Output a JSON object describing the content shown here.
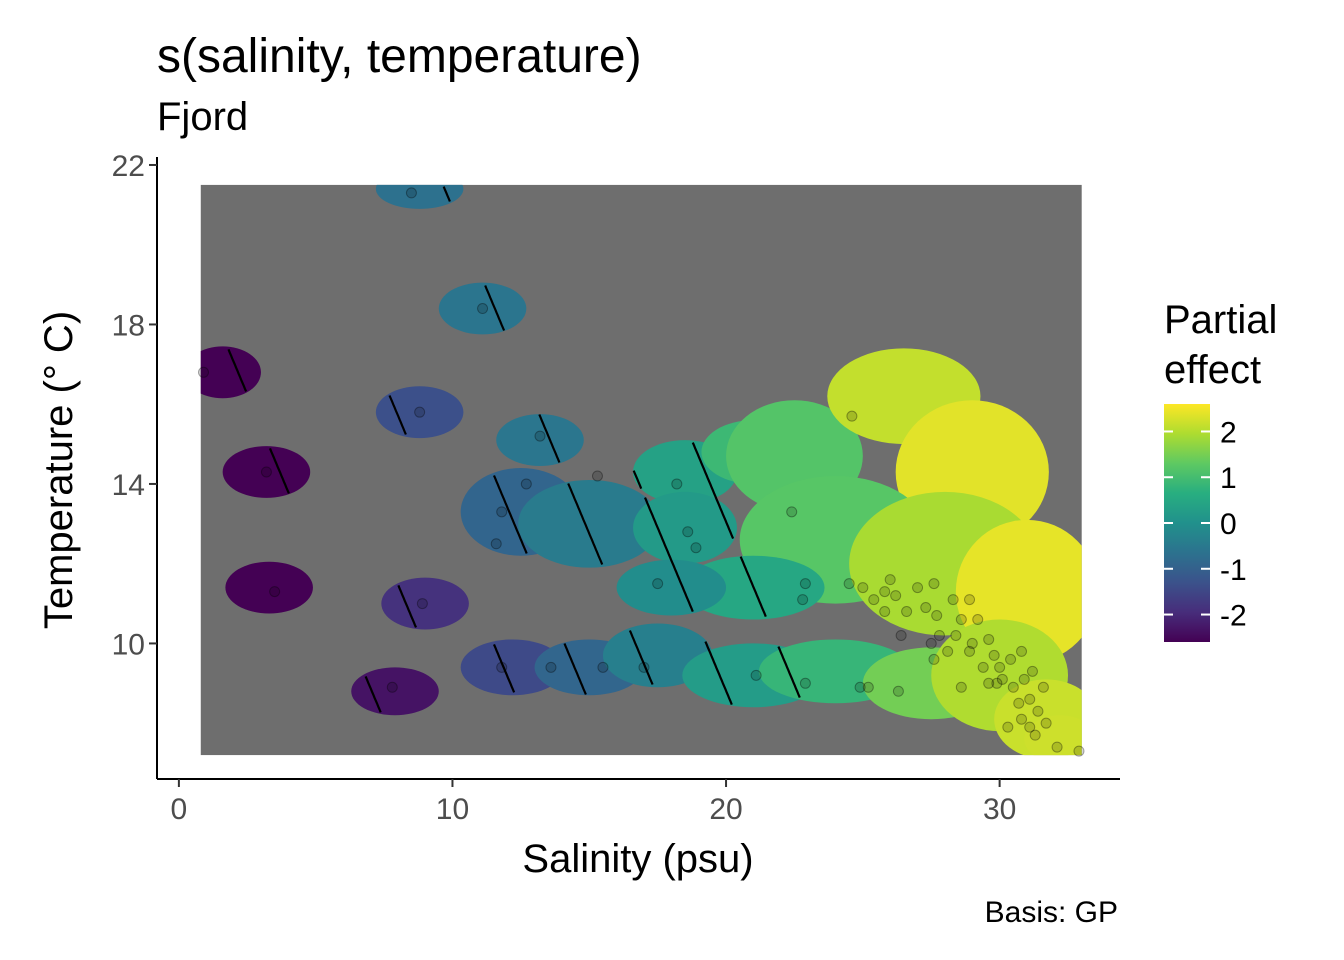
{
  "chart_data": {
    "type": "heatmap",
    "title": "s(salinity, temperature)",
    "subtitle": "Fjord",
    "xlabel": "Salinity (psu)",
    "ylabel": "Temperature (° C)",
    "caption": "Basis: GP",
    "xlim": [
      -0.8,
      34.4
    ],
    "ylim": [
      6.6,
      22.2
    ],
    "x_ticks": [
      0,
      10,
      20,
      30
    ],
    "y_ticks": [
      10,
      14,
      18,
      22
    ],
    "x_tick_labels": [
      "0",
      "10",
      "20",
      "30"
    ],
    "y_tick_labels": [
      "10",
      "14",
      "18",
      "22"
    ],
    "domain_x": [
      0.8,
      33.0
    ],
    "domain_y": [
      7.2,
      21.5
    ],
    "grid": false,
    "legend": {
      "title_lines": [
        "Partial",
        "effect"
      ],
      "position": "right",
      "range": [
        -2.6,
        2.6
      ],
      "ticks": [
        2,
        1,
        0,
        -1,
        -2
      ],
      "tick_labels": [
        "2",
        "1",
        "0",
        "-1",
        "-2"
      ],
      "palette": "viridis"
    },
    "surface": {
      "intercept": -4.9,
      "slope_salinity": 0.193,
      "slope_temperature": 0.118
    },
    "contour_levels": [
      -2.5,
      -2.0,
      -1.5,
      -1.0,
      -0.5,
      0.0,
      0.5
    ],
    "colors": {
      "excluded": "#6e6e6e",
      "contour": "#000000",
      "point": "#000000"
    },
    "coverage_regions": [
      {
        "x": 8.8,
        "y": 21.4,
        "rx": 1.6,
        "ry": 0.5
      },
      {
        "x": 11.1,
        "y": 18.4,
        "rx": 1.6,
        "ry": 0.65
      },
      {
        "x": 1.6,
        "y": 16.8,
        "rx": 1.4,
        "ry": 0.65
      },
      {
        "x": 8.8,
        "y": 15.8,
        "rx": 1.6,
        "ry": 0.65
      },
      {
        "x": 3.2,
        "y": 14.3,
        "rx": 1.6,
        "ry": 0.65
      },
      {
        "x": 3.3,
        "y": 11.4,
        "rx": 1.6,
        "ry": 0.65
      },
      {
        "x": 9.0,
        "y": 11.0,
        "rx": 1.6,
        "ry": 0.65
      },
      {
        "x": 7.9,
        "y": 8.8,
        "rx": 1.6,
        "ry": 0.6
      },
      {
        "x": 13.2,
        "y": 15.1,
        "rx": 1.6,
        "ry": 0.65
      },
      {
        "x": 12.5,
        "y": 13.3,
        "rx": 2.2,
        "ry": 1.1
      },
      {
        "x": 15.0,
        "y": 13.0,
        "rx": 2.6,
        "ry": 1.1
      },
      {
        "x": 18.5,
        "y": 14.3,
        "rx": 1.9,
        "ry": 0.8
      },
      {
        "x": 21.0,
        "y": 14.8,
        "rx": 1.9,
        "ry": 0.8
      },
      {
        "x": 18.5,
        "y": 12.9,
        "rx": 1.9,
        "ry": 0.9
      },
      {
        "x": 22.5,
        "y": 14.7,
        "rx": 2.5,
        "ry": 1.4
      },
      {
        "x": 26.5,
        "y": 16.2,
        "rx": 2.8,
        "ry": 1.2
      },
      {
        "x": 29.0,
        "y": 14.3,
        "rx": 2.8,
        "ry": 1.8
      },
      {
        "x": 24.0,
        "y": 12.6,
        "rx": 3.5,
        "ry": 1.6
      },
      {
        "x": 28.0,
        "y": 12.0,
        "rx": 3.5,
        "ry": 1.8
      },
      {
        "x": 31.0,
        "y": 11.3,
        "rx": 2.6,
        "ry": 1.8
      },
      {
        "x": 21.0,
        "y": 11.4,
        "rx": 2.6,
        "ry": 0.8
      },
      {
        "x": 18.0,
        "y": 11.4,
        "rx": 2.0,
        "ry": 0.7
      },
      {
        "x": 12.2,
        "y": 9.4,
        "rx": 1.9,
        "ry": 0.7
      },
      {
        "x": 15.0,
        "y": 9.4,
        "rx": 2.0,
        "ry": 0.7
      },
      {
        "x": 17.5,
        "y": 9.7,
        "rx": 2.0,
        "ry": 0.8
      },
      {
        "x": 21.0,
        "y": 9.2,
        "rx": 2.6,
        "ry": 0.8
      },
      {
        "x": 24.0,
        "y": 9.3,
        "rx": 2.8,
        "ry": 0.8
      },
      {
        "x": 27.5,
        "y": 9.0,
        "rx": 2.5,
        "ry": 0.9
      },
      {
        "x": 30.0,
        "y": 9.2,
        "rx": 2.5,
        "ry": 1.4
      },
      {
        "x": 31.7,
        "y": 8.1,
        "rx": 1.9,
        "ry": 1.0
      },
      {
        "x": 32.2,
        "y": 7.6,
        "rx": 1.3,
        "ry": 0.6
      }
    ],
    "points": [
      {
        "x": 8.5,
        "y": 21.3
      },
      {
        "x": 11.1,
        "y": 18.4
      },
      {
        "x": 0.9,
        "y": 16.8
      },
      {
        "x": 8.8,
        "y": 15.8
      },
      {
        "x": 3.2,
        "y": 14.3
      },
      {
        "x": 3.5,
        "y": 11.3
      },
      {
        "x": 8.9,
        "y": 11.0
      },
      {
        "x": 7.8,
        "y": 8.9
      },
      {
        "x": 13.2,
        "y": 15.2
      },
      {
        "x": 12.7,
        "y": 14.0
      },
      {
        "x": 11.8,
        "y": 13.3
      },
      {
        "x": 11.6,
        "y": 12.5
      },
      {
        "x": 15.3,
        "y": 14.2
      },
      {
        "x": 18.2,
        "y": 14.0
      },
      {
        "x": 18.6,
        "y": 12.8
      },
      {
        "x": 18.9,
        "y": 12.4
      },
      {
        "x": 22.4,
        "y": 13.3
      },
      {
        "x": 24.6,
        "y": 15.7
      },
      {
        "x": 17.5,
        "y": 11.5
      },
      {
        "x": 22.9,
        "y": 11.5
      },
      {
        "x": 22.8,
        "y": 11.1
      },
      {
        "x": 11.8,
        "y": 9.4
      },
      {
        "x": 13.6,
        "y": 9.4
      },
      {
        "x": 15.5,
        "y": 9.4
      },
      {
        "x": 17.0,
        "y": 9.4
      },
      {
        "x": 21.1,
        "y": 9.2
      },
      {
        "x": 22.9,
        "y": 9.0
      },
      {
        "x": 24.9,
        "y": 8.9
      },
      {
        "x": 25.2,
        "y": 8.9
      },
      {
        "x": 26.3,
        "y": 8.8
      },
      {
        "x": 28.6,
        "y": 8.9
      },
      {
        "x": 24.5,
        "y": 11.5
      },
      {
        "x": 25.0,
        "y": 11.4
      },
      {
        "x": 25.4,
        "y": 11.1
      },
      {
        "x": 25.8,
        "y": 11.3
      },
      {
        "x": 25.8,
        "y": 10.8
      },
      {
        "x": 26.0,
        "y": 11.6
      },
      {
        "x": 26.2,
        "y": 11.2
      },
      {
        "x": 26.6,
        "y": 10.8
      },
      {
        "x": 26.4,
        "y": 10.2
      },
      {
        "x": 27.0,
        "y": 11.4
      },
      {
        "x": 27.6,
        "y": 11.5
      },
      {
        "x": 27.3,
        "y": 10.9
      },
      {
        "x": 27.7,
        "y": 10.7
      },
      {
        "x": 27.8,
        "y": 10.2
      },
      {
        "x": 27.5,
        "y": 10.0
      },
      {
        "x": 28.1,
        "y": 9.8
      },
      {
        "x": 27.6,
        "y": 9.6
      },
      {
        "x": 28.3,
        "y": 11.1
      },
      {
        "x": 28.6,
        "y": 10.6
      },
      {
        "x": 28.9,
        "y": 11.1
      },
      {
        "x": 28.4,
        "y": 10.2
      },
      {
        "x": 29.0,
        "y": 10.0
      },
      {
        "x": 28.9,
        "y": 9.8
      },
      {
        "x": 29.2,
        "y": 10.6
      },
      {
        "x": 29.6,
        "y": 10.1
      },
      {
        "x": 29.8,
        "y": 9.7
      },
      {
        "x": 29.4,
        "y": 9.4
      },
      {
        "x": 30.0,
        "y": 9.4
      },
      {
        "x": 29.6,
        "y": 9.0
      },
      {
        "x": 29.9,
        "y": 9.0
      },
      {
        "x": 30.1,
        "y": 9.1
      },
      {
        "x": 30.4,
        "y": 9.6
      },
      {
        "x": 30.8,
        "y": 9.8
      },
      {
        "x": 30.5,
        "y": 8.9
      },
      {
        "x": 30.9,
        "y": 9.1
      },
      {
        "x": 31.2,
        "y": 9.3
      },
      {
        "x": 31.6,
        "y": 8.9
      },
      {
        "x": 30.7,
        "y": 8.5
      },
      {
        "x": 31.1,
        "y": 8.6
      },
      {
        "x": 31.4,
        "y": 8.3
      },
      {
        "x": 30.3,
        "y": 7.9
      },
      {
        "x": 30.8,
        "y": 8.1
      },
      {
        "x": 31.1,
        "y": 7.9
      },
      {
        "x": 31.3,
        "y": 7.7
      },
      {
        "x": 31.7,
        "y": 8.0
      },
      {
        "x": 32.1,
        "y": 7.4
      },
      {
        "x": 32.9,
        "y": 7.3
      }
    ]
  }
}
